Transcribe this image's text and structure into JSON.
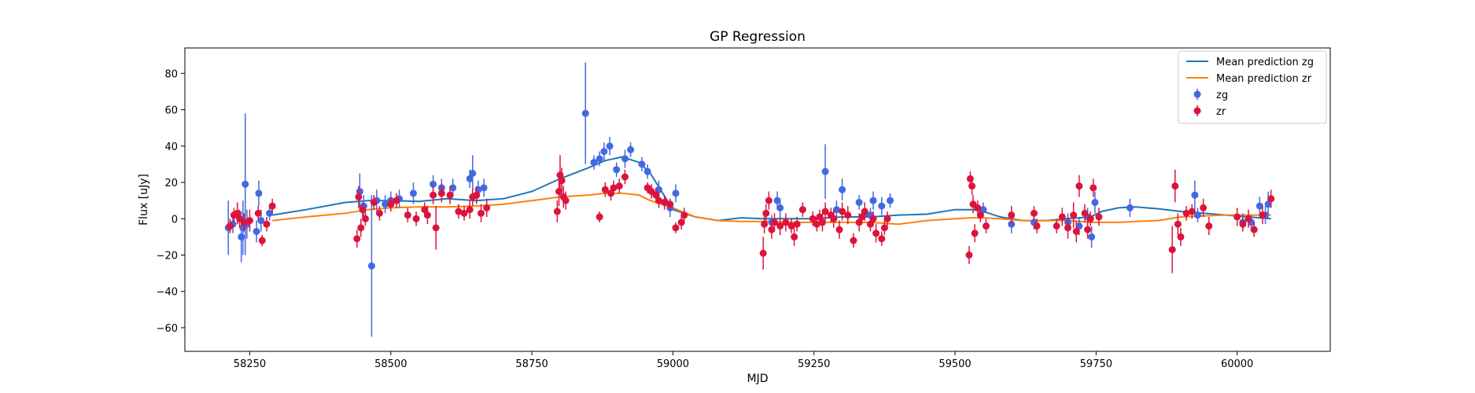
{
  "chart_data": {
    "type": "scatter",
    "title": "GP Regression",
    "xlabel": "MJD",
    "ylabel": "Flux [uJy]",
    "xlim": [
      58135,
      60165
    ],
    "ylim": [
      -73,
      94
    ],
    "xticks": [
      58250,
      58500,
      58750,
      59000,
      59250,
      59500,
      59750,
      60000
    ],
    "yticks": [
      -60,
      -40,
      -20,
      0,
      20,
      40,
      60,
      80
    ],
    "grid": false,
    "legend_position": "top-right",
    "colors": {
      "zg_line": "#1f77b4",
      "zr_line": "#ff7f0e",
      "zg_points": "#4169e1",
      "zr_points": "#dc143c"
    },
    "lines": [
      {
        "name": "Mean prediction zg",
        "color": "#1f77b4",
        "x": [
          58290,
          58350,
          58420,
          58460,
          58500,
          58550,
          58600,
          58650,
          58700,
          58750,
          58800,
          58850,
          58880,
          58910,
          58940,
          58960,
          58980,
          59000,
          59040,
          59080,
          59120,
          59160,
          59200,
          59250,
          59300,
          59350,
          59400,
          59450,
          59500,
          59530,
          59550,
          59580,
          59620,
          59660,
          59700,
          59740,
          59760,
          59790,
          59820,
          59860,
          59900,
          59940,
          59980,
          60020,
          60060
        ],
        "y": [
          2,
          5,
          9,
          10,
          10,
          9.5,
          11,
          10,
          11,
          15,
          22,
          28,
          32,
          34,
          31,
          25,
          15,
          5,
          1,
          -1,
          0.5,
          0,
          0,
          0,
          1,
          1,
          2,
          2.5,
          5,
          5,
          4,
          1,
          -1,
          -1,
          0,
          1,
          4,
          6,
          6.5,
          5.5,
          4,
          3,
          2,
          1,
          0
        ]
      },
      {
        "name": "Mean prediction zr",
        "color": "#ff7f0e",
        "x": [
          58290,
          58350,
          58420,
          58460,
          58500,
          58550,
          58600,
          58650,
          58700,
          58750,
          58800,
          58850,
          58880,
          58910,
          58940,
          58960,
          58980,
          59000,
          59040,
          59080,
          59120,
          59160,
          59200,
          59250,
          59300,
          59350,
          59400,
          59450,
          59500,
          59530,
          59550,
          59580,
          59620,
          59660,
          59700,
          59740,
          59760,
          59790,
          59820,
          59860,
          59900,
          59940,
          59980,
          60020,
          60060
        ],
        "y": [
          -1,
          1,
          3,
          5,
          6,
          6.5,
          6.5,
          7,
          8,
          10,
          12,
          13,
          14,
          14,
          13,
          10,
          8,
          6,
          1,
          -1,
          -1.5,
          -1.5,
          -2,
          -2,
          -2,
          -2,
          -3,
          -1,
          0,
          0.5,
          0.5,
          0,
          -1,
          -1,
          -1,
          -2,
          -2,
          -2,
          -1.5,
          -1,
          1,
          1.5,
          2,
          2,
          2
        ]
      }
    ],
    "series": [
      {
        "name": "zg",
        "color": "#4169e1",
        "x": [
          58212,
          58220,
          58235,
          58238,
          58242,
          58245,
          58262,
          58266,
          58270,
          58285,
          58445,
          58452,
          58466,
          58475,
          58490,
          58500,
          58515,
          58540,
          58575,
          58590,
          58610,
          58640,
          58645,
          58655,
          58665,
          58845,
          58860,
          58870,
          58878,
          58888,
          58900,
          58915,
          58925,
          58945,
          58955,
          58975,
          58995,
          59005,
          59175,
          59185,
          59190,
          59270,
          59290,
          59300,
          59330,
          59340,
          59350,
          59355,
          59370,
          59385,
          59550,
          59600,
          59640,
          59700,
          59720,
          59735,
          59742,
          59748,
          59810,
          59925,
          59930,
          60010,
          60025,
          60040,
          60050,
          60055
        ],
        "y": [
          -5,
          -3,
          -10,
          -5,
          19,
          -3,
          -7,
          14,
          -1,
          3,
          15,
          7,
          -26,
          10,
          8,
          10,
          11,
          14,
          19,
          17,
          17,
          22,
          25,
          16,
          17,
          58,
          31,
          33,
          37,
          40,
          27,
          33,
          38,
          30,
          26,
          16,
          6,
          14,
          -2,
          10,
          6,
          26,
          5,
          16,
          9,
          3,
          2,
          10,
          7,
          10,
          5,
          -3,
          -2,
          -2,
          -4,
          1,
          -10,
          9,
          6,
          13,
          2,
          -2,
          -2,
          7,
          2,
          8
        ],
        "err": [
          15,
          5,
          14,
          15,
          39,
          8,
          6,
          7,
          6,
          4,
          10,
          6,
          39,
          6,
          5,
          5,
          5,
          6,
          5,
          5,
          5,
          5,
          10,
          5,
          5,
          28,
          4,
          4,
          5,
          5,
          4,
          5,
          4,
          4,
          4,
          5,
          5,
          5,
          4,
          5,
          5,
          15,
          5,
          6,
          4,
          4,
          4,
          5,
          5,
          4,
          4,
          5,
          4,
          5,
          5,
          5,
          6,
          6,
          5,
          8,
          4,
          5,
          4,
          5,
          5,
          7
        ]
      },
      {
        "name": "zr",
        "color": "#dc143c",
        "x": [
          58215,
          58222,
          58228,
          58232,
          58240,
          58250,
          58265,
          58272,
          58280,
          58290,
          58440,
          58443,
          58447,
          58450,
          58455,
          58470,
          58480,
          58500,
          58510,
          58530,
          58545,
          58560,
          58565,
          58575,
          58580,
          58590,
          58605,
          58620,
          58630,
          58640,
          58645,
          58652,
          58660,
          58670,
          58795,
          58798,
          58800,
          58803,
          58806,
          58810,
          58870,
          58880,
          58890,
          58895,
          58905,
          58915,
          58955,
          58962,
          58970,
          58975,
          58985,
          58995,
          59005,
          59015,
          59020,
          59160,
          59162,
          59165,
          59170,
          59175,
          59180,
          59190,
          59200,
          59210,
          59215,
          59220,
          59230,
          59248,
          59255,
          59260,
          59265,
          59270,
          59280,
          59285,
          59295,
          59300,
          59310,
          59320,
          59330,
          59335,
          59340,
          59350,
          59355,
          59360,
          59370,
          59375,
          59380,
          59525,
          59527,
          59530,
          59532,
          59535,
          59540,
          59545,
          59555,
          59600,
          59640,
          59645,
          59680,
          59690,
          59700,
          59710,
          59715,
          59720,
          59730,
          59735,
          59740,
          59745,
          59755,
          59885,
          59890,
          59895,
          59900,
          59910,
          59920,
          59940,
          59950,
          60000,
          60010,
          60020,
          60030,
          60045,
          60060
        ],
        "y": [
          -4,
          2,
          3,
          0,
          -2,
          -1,
          3,
          -12,
          -3,
          7,
          -11,
          12,
          -5,
          5,
          0,
          9,
          3,
          8,
          10,
          2,
          0,
          5,
          2,
          13,
          -5,
          14,
          13,
          4,
          3,
          5,
          12,
          13,
          3,
          6,
          4,
          15,
          24,
          21,
          12,
          10,
          1,
          16,
          14,
          17,
          18,
          23,
          17,
          15,
          13,
          10,
          9,
          8,
          -5,
          -2,
          2,
          -19,
          -3,
          3,
          10,
          -6,
          -2,
          -4,
          -2,
          -4,
          -10,
          -3,
          5,
          0,
          -3,
          1,
          -2,
          4,
          2,
          0,
          -6,
          4,
          2,
          -12,
          -2,
          1,
          4,
          -3,
          0,
          -8,
          -11,
          -5,
          0,
          -20,
          22,
          18,
          8,
          -8,
          6,
          2,
          -4,
          2,
          3,
          -4,
          -4,
          1,
          -5,
          2,
          -7,
          18,
          3,
          -6,
          0,
          17,
          1,
          -17,
          18,
          -3,
          -10,
          3,
          4,
          6,
          -4,
          1,
          -3,
          0,
          -6,
          2,
          11
        ],
        "err": [
          4,
          4,
          6,
          5,
          5,
          6,
          4,
          3,
          4,
          4,
          5,
          6,
          5,
          4,
          4,
          4,
          4,
          4,
          4,
          4,
          4,
          4,
          5,
          5,
          12,
          5,
          5,
          4,
          4,
          5,
          5,
          5,
          5,
          5,
          6,
          8,
          11,
          7,
          6,
          5,
          3,
          4,
          4,
          4,
          4,
          4,
          3,
          4,
          4,
          4,
          4,
          3,
          3,
          4,
          4,
          9,
          5,
          5,
          5,
          5,
          5,
          5,
          5,
          4,
          5,
          4,
          4,
          4,
          4,
          4,
          5,
          5,
          4,
          5,
          5,
          5,
          5,
          4,
          5,
          4,
          5,
          4,
          4,
          5,
          4,
          4,
          4,
          5,
          4,
          5,
          5,
          5,
          4,
          4,
          4,
          5,
          4,
          4,
          4,
          5,
          6,
          7,
          6,
          6,
          5,
          5,
          4,
          5,
          5,
          13,
          9,
          6,
          5,
          4,
          4,
          5,
          5,
          5,
          4,
          5,
          4,
          5,
          5
        ]
      }
    ],
    "legend": [
      {
        "label": "Mean prediction zg",
        "kind": "line",
        "color": "#1f77b4"
      },
      {
        "label": "Mean prediction zr",
        "kind": "line",
        "color": "#ff7f0e"
      },
      {
        "label": "zg",
        "kind": "errorbar",
        "color": "#4169e1"
      },
      {
        "label": "zr",
        "kind": "errorbar",
        "color": "#dc143c"
      }
    ]
  }
}
